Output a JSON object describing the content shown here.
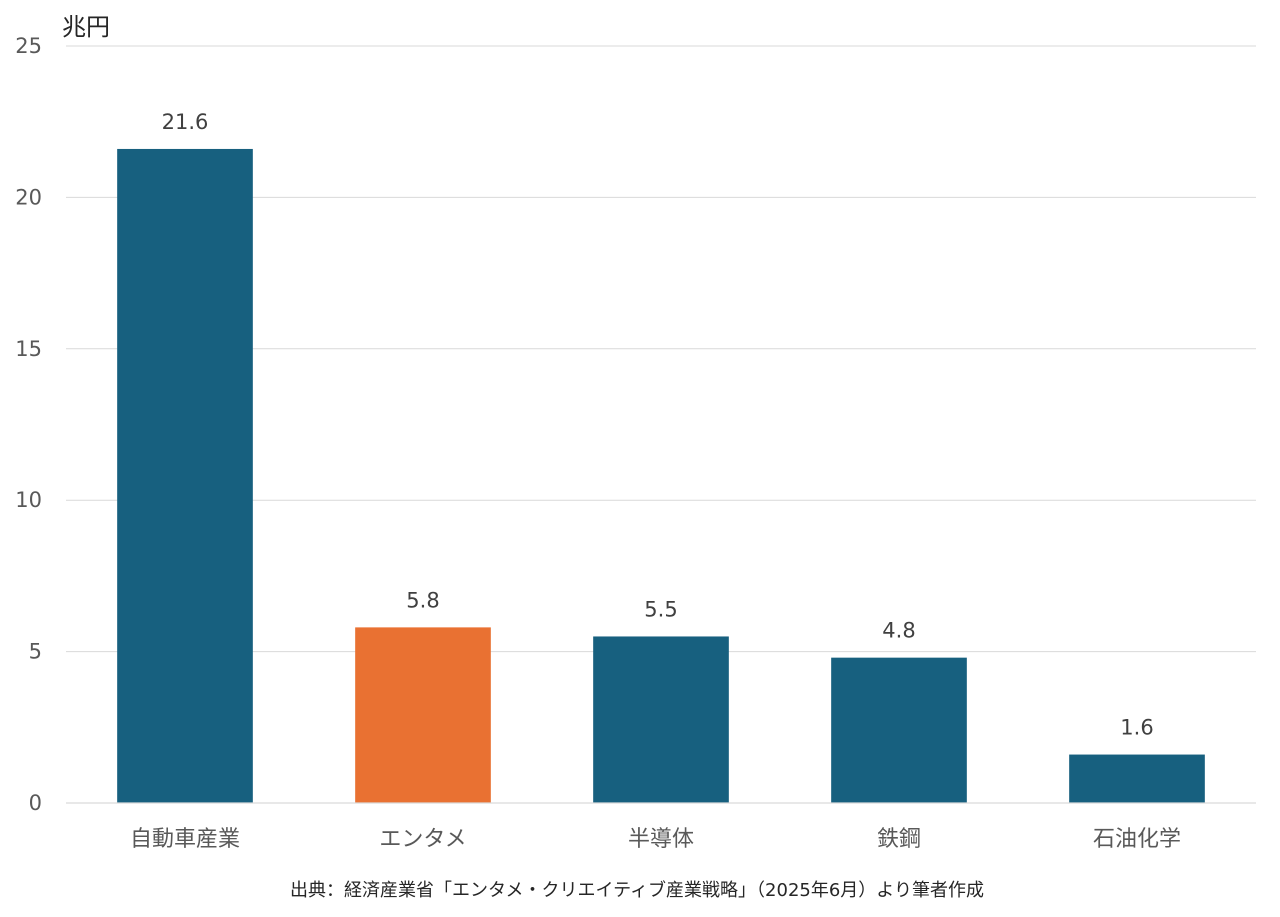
{
  "chart_data": {
    "type": "bar",
    "ylabel": "兆円",
    "categories": [
      "自動車産業",
      "エンタメ",
      "半導体",
      "鉄鋼",
      "石油化学"
    ],
    "values": [
      21.6,
      5.8,
      5.5,
      4.8,
      1.6
    ],
    "data_labels": [
      "21.6",
      "5.8",
      "5.5",
      "4.8",
      "1.6"
    ],
    "ylim": [
      0,
      25
    ],
    "yticks": [
      0,
      5,
      10,
      15,
      20,
      25
    ],
    "grid": true,
    "colors": {
      "default": "#17607f",
      "highlight": "#e97132"
    },
    "highlight_index": 1,
    "source": "出典：経済産業省「エンタメ・クリエイティブ産業戦略」（2025年6月）より筆者作成"
  }
}
